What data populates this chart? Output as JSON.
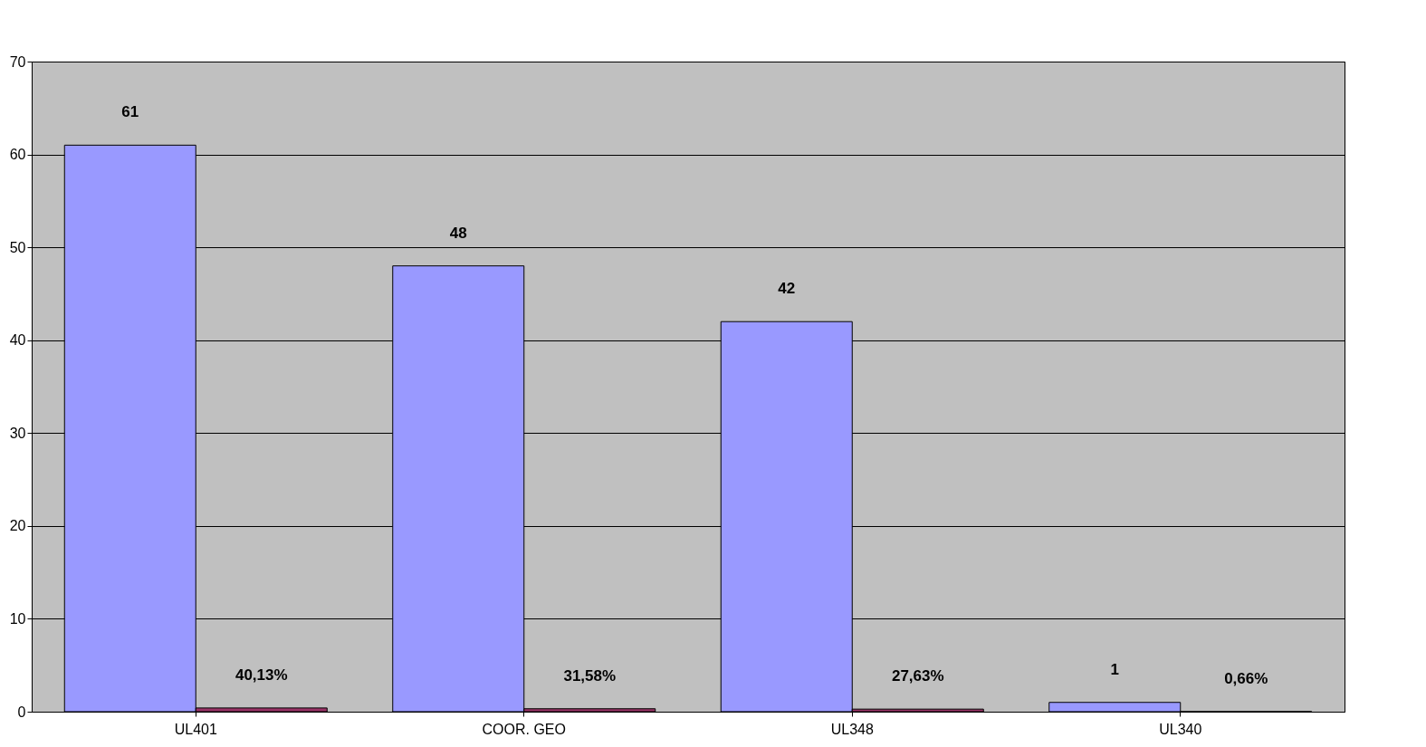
{
  "chart_data": {
    "type": "bar",
    "categories": [
      "UL401",
      "COOR. GEO",
      "UL348",
      "UL340"
    ],
    "series": [
      {
        "color": "#9999ff",
        "values": [
          61,
          48,
          42,
          1
        ],
        "value_labels": [
          "61",
          "48",
          "42",
          "1"
        ]
      },
      {
        "color": "#993366",
        "values": [
          0.4013,
          0.3158,
          0.2763,
          0.0066
        ],
        "value_labels": [
          "40,13%",
          "31,58%",
          "27,63%",
          "0,66%"
        ]
      }
    ],
    "ylim": [
      0,
      70
    ],
    "yticks": [
      0,
      10,
      20,
      30,
      40,
      50,
      60,
      70
    ],
    "grid": "y",
    "legend": false
  }
}
